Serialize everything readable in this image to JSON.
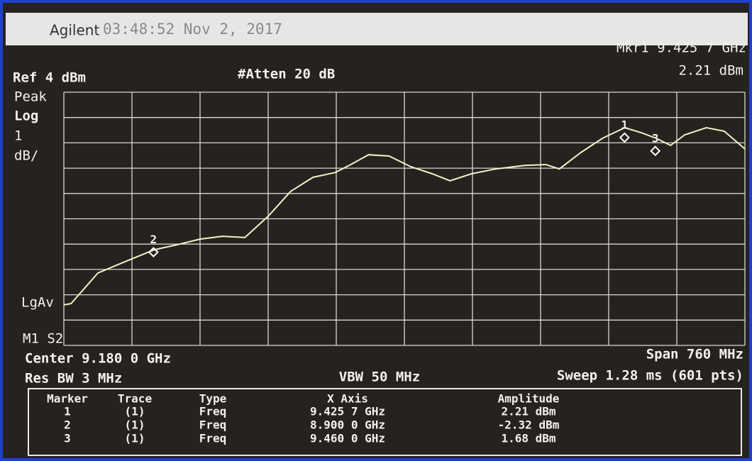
{
  "header": {
    "brand": "Agilent",
    "timestamp": "03:48:52  Nov 2, 2017"
  },
  "readout": {
    "marker": "Mkr1  9.425 7 GHz",
    "amplitude": "2.21 dBm",
    "ref": "Ref 4 dBm",
    "atten": "#Atten 20 dB"
  },
  "side_labels": [
    "Peak",
    "Log",
    "1",
    "dB/",
    "LgAv",
    "M1 S2"
  ],
  "footer": {
    "center": "Center 9.180 0 GHz",
    "span": "Span 760 MHz",
    "rbw": "Res BW 3 MHz",
    "vbw": "VBW 50 MHz",
    "sweep": "Sweep 1.28 ms (601 pts)"
  },
  "table": {
    "headers": [
      "Marker",
      "Trace",
      "Type",
      "X Axis",
      "Amplitude"
    ],
    "rows": [
      [
        "1",
        "(1)",
        "Freq",
        "9.425 7 GHz",
        "2.21 dBm"
      ],
      [
        "2",
        "(1)",
        "Freq",
        "8.900 0 GHz",
        "-2.32 dBm"
      ],
      [
        "3",
        "(1)",
        "Freq",
        "9.460 0 GHz",
        "1.68 dBm"
      ]
    ]
  },
  "chart_data": {
    "type": "line",
    "color": "#f4f0c8",
    "grid": true,
    "xlim": [
      8.8,
      9.56
    ],
    "ylim": [
      -6,
      4
    ],
    "xticks": [
      8.8,
      8.876,
      8.952,
      9.028,
      9.104,
      9.18,
      9.256,
      9.332,
      9.408,
      9.484,
      9.56
    ],
    "yticks": [
      -6,
      -5,
      -4,
      -3,
      -2,
      -1,
      0,
      1,
      2,
      3,
      4
    ],
    "x": [
      8.8,
      8.808,
      8.838,
      8.876,
      8.901,
      8.927,
      8.952,
      8.977,
      9.002,
      9.028,
      9.053,
      9.078,
      9.103,
      9.12,
      9.14,
      9.163,
      9.187,
      9.211,
      9.231,
      9.255,
      9.282,
      9.314,
      9.338,
      9.353,
      9.377,
      9.401,
      9.426,
      9.446,
      9.461,
      9.477,
      9.493,
      9.517,
      9.537,
      9.56
    ],
    "values": [
      -4.4,
      -4.35,
      -3.14,
      -2.58,
      -2.22,
      -2.02,
      -1.8,
      -1.69,
      -1.74,
      -0.9,
      0.08,
      0.64,
      0.83,
      1.14,
      1.53,
      1.48,
      1.06,
      0.78,
      0.5,
      0.78,
      0.97,
      1.11,
      1.14,
      0.97,
      1.62,
      2.18,
      2.6,
      2.38,
      2.18,
      1.9,
      2.32,
      2.6,
      2.46,
      1.76
    ],
    "markers": [
      {
        "label": "1",
        "x": 9.4257,
        "y": 2.21
      },
      {
        "label": "2",
        "x": 8.9,
        "y": -2.32
      },
      {
        "label": "3",
        "x": 9.46,
        "y": 1.68
      }
    ]
  }
}
